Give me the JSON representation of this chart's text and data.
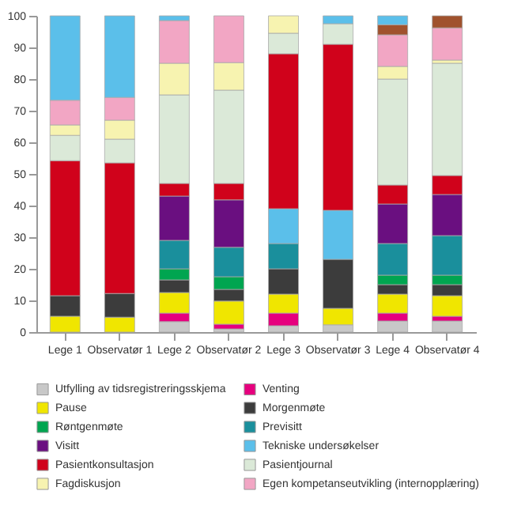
{
  "chart_data": {
    "type": "bar",
    "stacked": true,
    "categories": [
      "Lege 1",
      "Observatør 1",
      "Lege 2",
      "Observatør 2",
      "Lege 3",
      "Observatør 3",
      "Lege 4",
      "Observatør 4"
    ],
    "ylim": [
      0,
      100
    ],
    "yticks": [
      0,
      10,
      20,
      30,
      40,
      50,
      60,
      70,
      80,
      90,
      100
    ],
    "grid": false,
    "legend": "bottom",
    "series": [
      {
        "name": "Utfylling av tidsregistreringsskjema",
        "color": "#c8c8c8",
        "values": [
          null,
          null,
          3.3,
          1,
          2,
          2.3,
          3.5,
          3.5
        ]
      },
      {
        "name": "Venting",
        "color": "#e6007e",
        "values": [
          null,
          null,
          2.7,
          1.5,
          4,
          null,
          2.5,
          1.5
        ]
      },
      {
        "name": "Pause",
        "color": "#f0e600",
        "values": [
          5,
          4.7,
          6.5,
          7.3,
          6,
          5.2,
          6,
          6.5
        ]
      },
      {
        "name": "Morgenmøte",
        "color": "#3c3c3c",
        "values": [
          6.5,
          7.5,
          4,
          3.7,
          8,
          15.5,
          3,
          3.5
        ]
      },
      {
        "name": "Røntgenmøte",
        "color": "#00a550",
        "values": [
          null,
          null,
          3.5,
          4,
          null,
          null,
          3,
          3
        ]
      },
      {
        "name": "Previsitt",
        "color": "#1a8f9c",
        "values": [
          null,
          null,
          9,
          9.3,
          8,
          null,
          10,
          12.5
        ]
      },
      {
        "name": "Visitt",
        "color": "#6a0f80",
        "values": [
          null,
          null,
          14,
          15,
          null,
          null,
          12.5,
          13
        ]
      },
      {
        "name": "Tekniske undersøkelser",
        "color": "#5bbfea",
        "values": [
          null,
          null,
          null,
          null,
          11,
          15.5,
          null,
          null
        ]
      },
      {
        "name": "Pasientkonsultasjon",
        "color": "#d0021b",
        "values": [
          42.7,
          41.3,
          4,
          5.2,
          49,
          52.5,
          6,
          6
        ]
      },
      {
        "name": "Pasientjournal",
        "color": "#dbe9d8",
        "values": [
          8,
          7.5,
          28,
          29.5,
          6.5,
          6.5,
          33.5,
          35.5
        ]
      },
      {
        "name": "Fagdiskusjon",
        "color": "#f7f3b0",
        "values": [
          3.3,
          6,
          10,
          8.7,
          5.5,
          null,
          4,
          1
        ]
      },
      {
        "name": "Egen kompetanseutvikling (internopplæring)",
        "color": "#f2a6c4",
        "values": [
          7.8,
          7.2,
          13.5,
          14.8,
          null,
          null,
          10,
          10.2
        ]
      },
      {
        "color": "#a0522d",
        "values": [
          null,
          null,
          null,
          null,
          null,
          null,
          3.2,
          3.8
        ]
      },
      {
        "color": "#5bbfea",
        "values": [
          26.7,
          25.8,
          1.5,
          null,
          null,
          2.5,
          2.8,
          null
        ]
      }
    ]
  }
}
